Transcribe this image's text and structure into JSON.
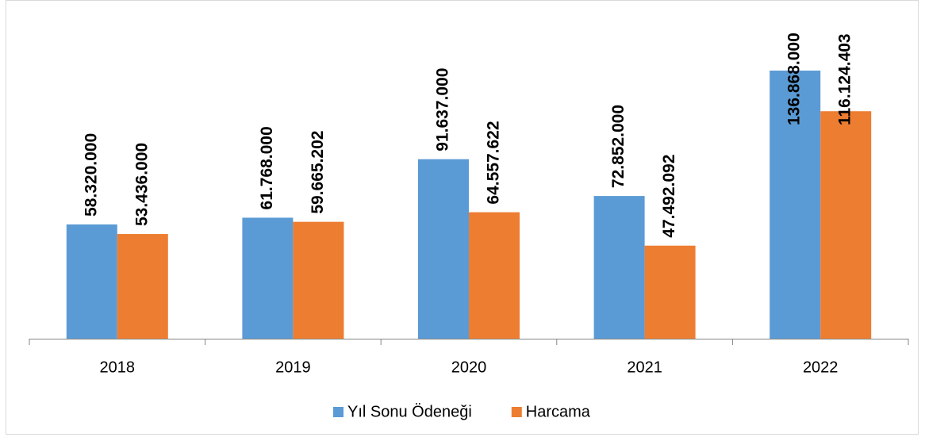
{
  "chart_data": {
    "type": "bar",
    "categories": [
      "2018",
      "2019",
      "2020",
      "2021",
      "2022"
    ],
    "series": [
      {
        "name": "Yıl Sonu Ödeneği",
        "color": "#5b9bd5",
        "values": [
          58320000,
          61768000,
          91637000,
          72852000,
          136868000
        ],
        "value_labels": [
          "58.320.000",
          "61.768.000",
          "91.637.000",
          "72.852.000",
          "136.868.000"
        ]
      },
      {
        "name": "Harcama",
        "color": "#ed7d31",
        "values": [
          53436000,
          59665202,
          64557622,
          47492092,
          116124403
        ],
        "value_labels": [
          "53.436.000",
          "59.665.202",
          "64.557.622",
          "47.492.092",
          "116.124.403"
        ]
      }
    ],
    "legend": "bottom"
  }
}
